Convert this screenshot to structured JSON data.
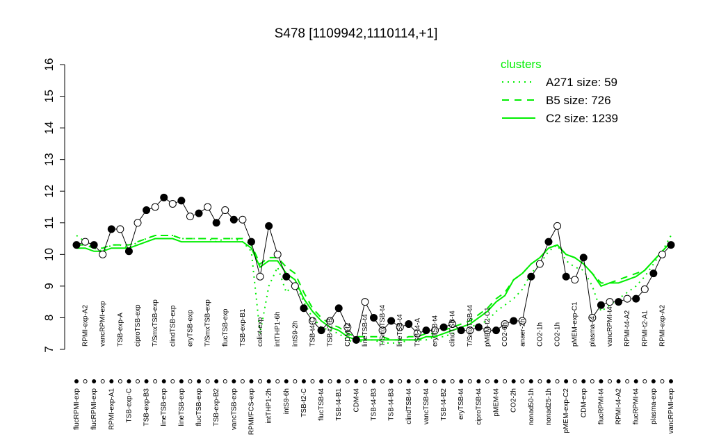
{
  "chart_data": {
    "type": "line",
    "title": "S478 [1109942,1110114,+1]",
    "categories": [
      "flucRPMI-exp",
      "RPMI-exp-A2",
      "flucRPMI-exp",
      "vancRPMI-exp",
      "RPMI-exp-A1",
      "TSB-exp-A",
      "TSB-exp-C",
      "ciproTSB-exp",
      "TSB-exp-B3",
      "T/SmxTSB-exp",
      "lineTSB-exp",
      "clindTSB-exp",
      "lineTSB-exp",
      "eryTSB-exp",
      "flucTSB-exp",
      "T/SmxTSB-exp",
      "TSB-exp-B2",
      "flucTSB-exp",
      "vancTSB-exp",
      "TSB-exp-B1",
      "RPMI/FCS-exp",
      "colist-exp",
      "intTHP1-2h",
      "intTHP1-6h",
      "intS9-6h",
      "intS9-2h",
      "TSB-t2-C",
      "TSB-t4-C",
      "flucTSB-t4",
      "TSB-t2-B",
      "TSB-t4-B1",
      "CDM-t2",
      "CDM-t4",
      "lineTSB-t4",
      "TSB-t4-B3",
      "T/SmxTSB-t4",
      "TSB-t4-B3",
      "lineTSB-t4",
      "clindTSB-t4",
      "TSB-t4-A",
      "vancTSB-t4",
      "eryTSB-t4",
      "TSB-t4-B2",
      "clindTSB-t4",
      "eryTSB-t4",
      "T/SmxTSB-t4",
      "ciproTSB-t4",
      "pMEM-t2-C1",
      "pMEM-t4",
      "CO2-6h",
      "CO2-2h",
      "anaer-2h",
      "nonad50-1h",
      "CO2-1h",
      "nonad25-1h",
      "CO2-1h",
      "pMEM-exp-C2",
      "pMEM-exp-C1",
      "CDM-exp",
      "plasma-t4",
      "flucRPMI-t4",
      "vancRPMI-t4",
      "RPMI-t4-A2",
      "RPMI-t4-A2",
      "flucRPMI-t4",
      "RPMI-t2-A1",
      "plasma-exp",
      "RPMI-exp-A2",
      "vancRPMI-exp"
    ],
    "values": [
      10.3,
      10.4,
      10.3,
      10.0,
      10.8,
      10.8,
      10.1,
      11.0,
      11.4,
      11.5,
      11.8,
      11.6,
      11.7,
      11.2,
      11.3,
      11.5,
      11.0,
      11.4,
      11.1,
      11.1,
      10.4,
      9.3,
      10.9,
      10.0,
      9.3,
      9.0,
      8.3,
      7.9,
      7.6,
      7.9,
      8.3,
      7.7,
      7.3,
      8.5,
      8.0,
      7.6,
      7.9,
      7.7,
      7.8,
      7.5,
      7.6,
      7.6,
      7.7,
      7.8,
      7.6,
      7.6,
      7.7,
      7.6,
      7.6,
      7.8,
      7.9,
      7.9,
      9.3,
      9.7,
      10.4,
      10.9,
      9.3,
      9.2,
      9.9,
      8.0,
      8.4,
      8.5,
      8.5,
      8.6,
      8.6,
      8.9,
      9.4,
      10.0,
      10.3
    ],
    "point_colors": [
      "#000000",
      "#ffffff"
    ],
    "line_color": "#000000",
    "series": [
      {
        "name": "A271 size: 59",
        "color": "#00ee00",
        "linestyle": "dotted",
        "values": [
          10.6,
          10.4,
          10.2,
          10.1,
          10.3,
          10.3,
          10.2,
          10.4,
          10.5,
          10.6,
          10.6,
          10.6,
          10.5,
          10.5,
          10.5,
          10.5,
          10.4,
          10.5,
          10.5,
          10.4,
          10.1,
          7.5,
          9.0,
          9.6,
          8.8,
          9.1,
          8.5,
          8.0,
          7.7,
          7.6,
          7.5,
          7.3,
          7.2,
          7.3,
          7.3,
          7.2,
          7.2,
          7.2,
          7.3,
          7.3,
          7.3,
          7.4,
          7.4,
          7.5,
          7.6,
          7.7,
          7.8,
          7.9,
          8.2,
          8.4,
          8.6,
          8.9,
          9.4,
          9.7,
          10.1,
          10.3,
          9.8,
          9.6,
          9.5,
          9.0,
          8.2,
          8.4,
          8.6,
          8.8,
          9.0,
          9.3,
          9.7,
          10.1,
          10.6
        ]
      },
      {
        "name": "B5 size: 726",
        "color": "#00ee00",
        "linestyle": "dashed",
        "values": [
          10.3,
          10.3,
          10.2,
          10.2,
          10.3,
          10.3,
          10.3,
          10.4,
          10.5,
          10.6,
          10.6,
          10.6,
          10.5,
          10.5,
          10.5,
          10.5,
          10.5,
          10.5,
          10.5,
          10.5,
          10.3,
          9.7,
          9.9,
          9.9,
          9.6,
          9.4,
          8.8,
          8.3,
          8.0,
          7.8,
          7.7,
          7.5,
          7.4,
          7.4,
          7.4,
          7.4,
          7.3,
          7.3,
          7.4,
          7.4,
          7.5,
          7.5,
          7.6,
          7.7,
          7.8,
          7.9,
          8.1,
          8.3,
          8.6,
          8.8,
          9.2,
          9.4,
          9.7,
          9.9,
          10.2,
          10.3,
          10.0,
          9.9,
          9.7,
          9.4,
          9.1,
          9.1,
          9.2,
          9.3,
          9.4,
          9.5,
          9.8,
          10.1,
          10.4
        ]
      },
      {
        "name": "C2 size: 1239",
        "color": "#00ee00",
        "linestyle": "solid",
        "values": [
          10.2,
          10.2,
          10.1,
          10.1,
          10.2,
          10.2,
          10.2,
          10.3,
          10.4,
          10.5,
          10.5,
          10.5,
          10.4,
          10.4,
          10.4,
          10.4,
          10.4,
          10.4,
          10.4,
          10.4,
          10.2,
          9.6,
          9.8,
          9.8,
          9.4,
          9.2,
          8.6,
          8.2,
          7.9,
          7.7,
          7.6,
          7.4,
          7.3,
          7.3,
          7.3,
          7.3,
          7.3,
          7.3,
          7.3,
          7.3,
          7.4,
          7.4,
          7.5,
          7.6,
          7.7,
          7.8,
          8.0,
          8.2,
          8.5,
          8.7,
          9.2,
          9.4,
          9.7,
          9.9,
          10.2,
          10.3,
          10.0,
          9.9,
          9.7,
          9.4,
          9.0,
          9.1,
          9.1,
          9.2,
          9.3,
          9.5,
          9.8,
          10.1,
          10.4
        ]
      }
    ],
    "legend_title": "clusters",
    "ylim": [
      7,
      16
    ],
    "yticks": [
      7,
      8,
      9,
      10,
      11,
      12,
      13,
      14,
      15,
      16
    ]
  }
}
